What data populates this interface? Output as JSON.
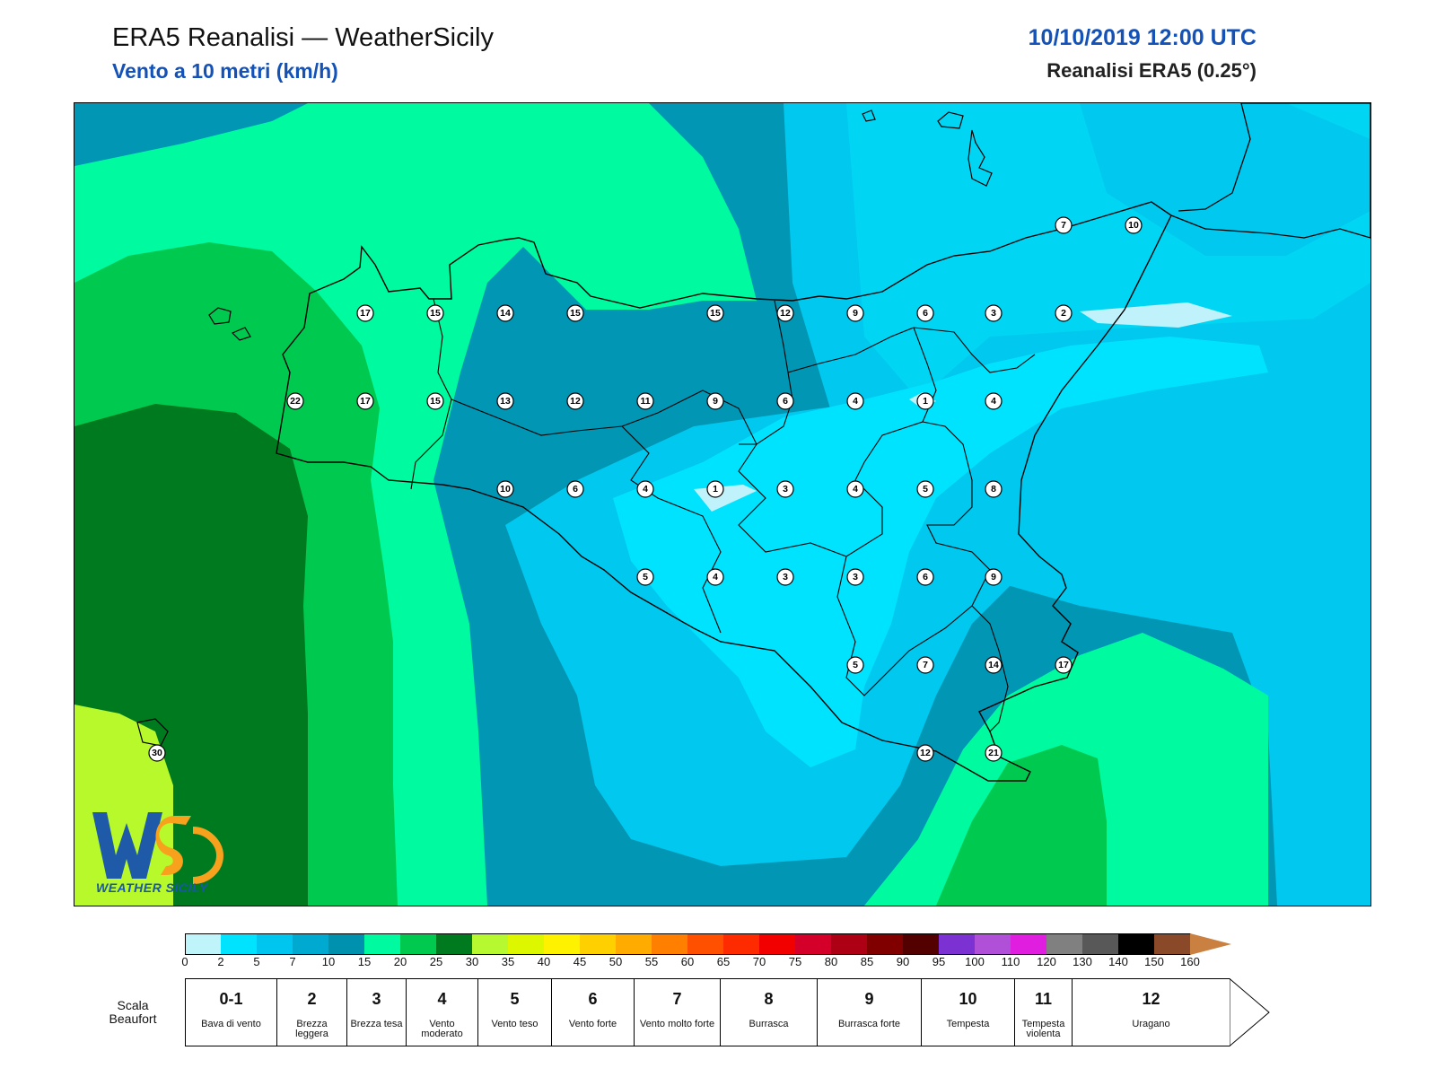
{
  "header": {
    "title": "ERA5 Reanalisi — WeatherSicily",
    "subtitle": "Vento a 10 metri (km/h)",
    "datetime": "10/10/2019 12:00 UTC",
    "model": "Reanalisi ERA5 (0.25°)"
  },
  "map": {
    "region": "Sicilia",
    "station_values": [
      [
        "7",
        "10"
      ],
      [
        "17",
        "15",
        "14",
        "15",
        "15",
        "12",
        "9",
        "6",
        "3",
        "2"
      ],
      [
        "22",
        "17",
        "15",
        "13",
        "12",
        "11",
        "9",
        "6",
        "4",
        "1",
        "4"
      ],
      [
        "10",
        "6",
        "4",
        "1",
        "3",
        "4",
        "5",
        "8"
      ],
      [
        "5",
        "4",
        "3",
        "3",
        "6",
        "9"
      ],
      [
        "5",
        "7",
        "14",
        "17"
      ],
      [
        "30",
        "12",
        "21"
      ]
    ],
    "colors": {
      "calm": "#bff2fb",
      "light": "#00e3ff",
      "medium": "#00c8ee",
      "strong": "#0096b4",
      "teal": "#00fa9f",
      "green": "#00c950",
      "darkgreen": "#007a1f",
      "lime": "#b7f92a"
    }
  },
  "logo": {
    "mark": "WS",
    "caption": "WEATHER SICILY"
  },
  "colorbar": {
    "labels": [
      "0",
      "2",
      "5",
      "7",
      "10",
      "15",
      "20",
      "25",
      "30",
      "35",
      "40",
      "45",
      "50",
      "55",
      "60",
      "65",
      "70",
      "75",
      "80",
      "85",
      "90",
      "95",
      "100",
      "110",
      "120",
      "130",
      "140",
      "150",
      "160"
    ],
    "colors": [
      "#c0f4fb",
      "#00e3ff",
      "#00c6ef",
      "#00a9cf",
      "#0091ae",
      "#00fa9f",
      "#00c950",
      "#007a1f",
      "#b6f930",
      "#dcf700",
      "#fff200",
      "#ffd000",
      "#ffab00",
      "#ff8000",
      "#ff5000",
      "#ff2b00",
      "#f20000",
      "#d4002a",
      "#ad0014",
      "#800000",
      "#520000",
      "#7c32d2",
      "#b050d8",
      "#e01ee0",
      "#808080",
      "#585858",
      "#000000",
      "#8a4a2a",
      "#c98040"
    ],
    "extend_arrow_color": "#c98040"
  },
  "beaufort": {
    "title": "Scala Beaufort",
    "scale": [
      {
        "n": "0-1",
        "desc": "Bava di vento"
      },
      {
        "n": "2",
        "desc": "Brezza leggera"
      },
      {
        "n": "3",
        "desc": "Brezza tesa"
      },
      {
        "n": "4",
        "desc": "Vento moderato"
      },
      {
        "n": "5",
        "desc": "Vento teso"
      },
      {
        "n": "6",
        "desc": "Vento forte"
      },
      {
        "n": "7",
        "desc": "Vento molto forte"
      },
      {
        "n": "8",
        "desc": "Burrasca"
      },
      {
        "n": "9",
        "desc": "Burrasca forte"
      },
      {
        "n": "10",
        "desc": "Tempesta"
      },
      {
        "n": "11",
        "desc": "Tempesta violenta"
      },
      {
        "n": "12",
        "desc": "Uragano"
      }
    ]
  }
}
